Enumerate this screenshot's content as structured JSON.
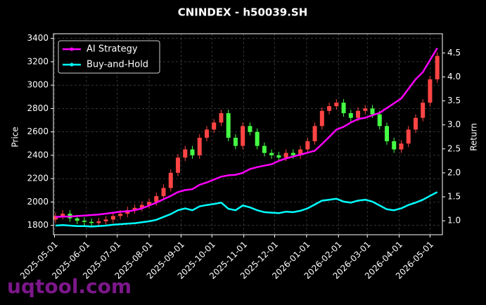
{
  "chart_data": {
    "type": "candlestick",
    "title": "CNINDEX - h50039.SH",
    "ylabel": "Price",
    "y2label": "Return",
    "watermark": "uqtool.com",
    "legend": "upper left",
    "grid": true,
    "up_color": "#ff4444",
    "down_color": "#44ff44",
    "x": [
      "2025-05-02",
      "2025-05-09",
      "2025-05-16",
      "2025-05-23",
      "2025-05-30",
      "2025-06-06",
      "2025-06-13",
      "2025-06-20",
      "2025-06-27",
      "2025-07-04",
      "2025-07-11",
      "2025-07-18",
      "2025-07-25",
      "2025-08-01",
      "2025-08-08",
      "2025-08-15",
      "2025-08-22",
      "2025-08-29",
      "2025-09-05",
      "2025-09-12",
      "2025-09-19",
      "2025-09-26",
      "2025-10-03",
      "2025-10-10",
      "2025-10-17",
      "2025-10-24",
      "2025-10-31",
      "2025-11-07",
      "2025-11-14",
      "2025-11-21",
      "2025-11-28",
      "2025-12-05",
      "2025-12-12",
      "2025-12-19",
      "2025-12-26",
      "2026-01-02",
      "2026-01-09",
      "2026-01-16",
      "2026-01-23",
      "2026-01-30",
      "2026-02-06",
      "2026-02-13",
      "2026-02-20",
      "2026-02-27",
      "2026-03-06",
      "2026-03-13",
      "2026-03-20",
      "2026-03-27",
      "2026-04-03",
      "2026-04-10",
      "2026-04-17",
      "2026-04-24",
      "2026-05-01",
      "2026-05-08"
    ],
    "open": [
      1850,
      1880,
      1900,
      1860,
      1840,
      1830,
      1820,
      1835,
      1850,
      1880,
      1900,
      1930,
      1950,
      1975,
      2000,
      2050,
      2120,
      2250,
      2380,
      2450,
      2400,
      2550,
      2620,
      2680,
      2760,
      2550,
      2480,
      2650,
      2600,
      2480,
      2420,
      2400,
      2380,
      2420,
      2400,
      2450,
      2520,
      2650,
      2780,
      2820,
      2850,
      2760,
      2720,
      2780,
      2800,
      2750,
      2650,
      2520,
      2450,
      2500,
      2620,
      2720,
      2850,
      3050
    ],
    "high": [
      1910,
      1930,
      1930,
      1890,
      1870,
      1860,
      1865,
      1880,
      1910,
      1930,
      1960,
      1980,
      2005,
      2030,
      2080,
      2150,
      2280,
      2410,
      2480,
      2480,
      2580,
      2650,
      2710,
      2790,
      2790,
      2580,
      2680,
      2680,
      2630,
      2510,
      2450,
      2430,
      2450,
      2450,
      2480,
      2550,
      2680,
      2810,
      2850,
      2880,
      2880,
      2790,
      2810,
      2830,
      2830,
      2780,
      2680,
      2550,
      2530,
      2650,
      2750,
      2880,
      3080,
      3280
    ],
    "low": [
      1820,
      1850,
      1830,
      1810,
      1800,
      1790,
      1790,
      1805,
      1820,
      1850,
      1870,
      1900,
      1920,
      1945,
      1970,
      2020,
      2090,
      2220,
      2350,
      2370,
      2370,
      2520,
      2590,
      2650,
      2520,
      2450,
      2450,
      2570,
      2450,
      2390,
      2370,
      2350,
      2350,
      2370,
      2370,
      2420,
      2490,
      2620,
      2750,
      2790,
      2730,
      2690,
      2690,
      2750,
      2720,
      2620,
      2490,
      2420,
      2420,
      2470,
      2590,
      2690,
      2820,
      3020
    ],
    "close": [
      1880,
      1900,
      1860,
      1840,
      1830,
      1820,
      1835,
      1850,
      1880,
      1900,
      1930,
      1950,
      1975,
      2000,
      2050,
      2120,
      2250,
      2380,
      2450,
      2400,
      2550,
      2620,
      2680,
      2760,
      2550,
      2480,
      2650,
      2600,
      2480,
      2420,
      2400,
      2380,
      2420,
      2400,
      2450,
      2520,
      2650,
      2780,
      2820,
      2850,
      2760,
      2720,
      2780,
      2800,
      2750,
      2650,
      2520,
      2450,
      2500,
      2620,
      2720,
      2850,
      3050,
      3250
    ],
    "series": [
      {
        "name": "AI Strategy",
        "color": "#ff00ff",
        "axis": "y2",
        "values": [
          1.08,
          1.09,
          1.09,
          1.1,
          1.11,
          1.12,
          1.13,
          1.15,
          1.17,
          1.19,
          1.2,
          1.22,
          1.26,
          1.32,
          1.38,
          1.45,
          1.52,
          1.6,
          1.64,
          1.66,
          1.75,
          1.8,
          1.86,
          1.92,
          1.95,
          1.96,
          2.0,
          2.08,
          2.12,
          2.15,
          2.18,
          2.25,
          2.3,
          2.34,
          2.38,
          2.42,
          2.46,
          2.6,
          2.75,
          2.9,
          2.96,
          3.05,
          3.12,
          3.15,
          3.2,
          3.25,
          3.35,
          3.45,
          3.55,
          3.75,
          3.95,
          4.1,
          4.35,
          4.6
        ]
      },
      {
        "name": "Buy-and-Hold",
        "color": "#00ffff",
        "axis": "y2",
        "values": [
          0.9,
          0.91,
          0.9,
          0.89,
          0.89,
          0.88,
          0.89,
          0.9,
          0.92,
          0.93,
          0.94,
          0.95,
          0.97,
          0.99,
          1.02,
          1.08,
          1.14,
          1.22,
          1.26,
          1.22,
          1.3,
          1.33,
          1.35,
          1.38,
          1.25,
          1.22,
          1.32,
          1.28,
          1.22,
          1.18,
          1.17,
          1.16,
          1.19,
          1.18,
          1.21,
          1.26,
          1.34,
          1.42,
          1.44,
          1.46,
          1.4,
          1.38,
          1.42,
          1.44,
          1.4,
          1.32,
          1.24,
          1.22,
          1.26,
          1.33,
          1.38,
          1.44,
          1.52,
          1.6
        ]
      }
    ],
    "xlim": [
      "2025-04-30",
      "2026-05-13"
    ],
    "xticks": [
      "2025-05-01",
      "2025-06-01",
      "2025-07-01",
      "2025-08-01",
      "2025-09-01",
      "2025-10-01",
      "2025-11-01",
      "2025-12-01",
      "2026-01-01",
      "2026-02-01",
      "2026-03-01",
      "2026-04-01",
      "2026-05-01"
    ],
    "ylim": [
      1720,
      3440
    ],
    "yticks": [
      1800,
      2000,
      2200,
      2400,
      2600,
      2800,
      3000,
      3200,
      3400
    ],
    "y2lim": [
      0.71,
      4.9
    ],
    "y2ticks": [
      {
        "value": 1,
        "label": "1.0"
      },
      {
        "value": 1.5,
        "label": "1.5"
      },
      {
        "value": 2,
        "label": "2.0"
      },
      {
        "value": 2.5,
        "label": "2.5"
      },
      {
        "value": 3,
        "label": "3.0"
      },
      {
        "value": 3.5,
        "label": "3.5"
      },
      {
        "value": 4,
        "label": "4.0"
      },
      {
        "value": 4.5,
        "label": "4.5"
      }
    ]
  }
}
